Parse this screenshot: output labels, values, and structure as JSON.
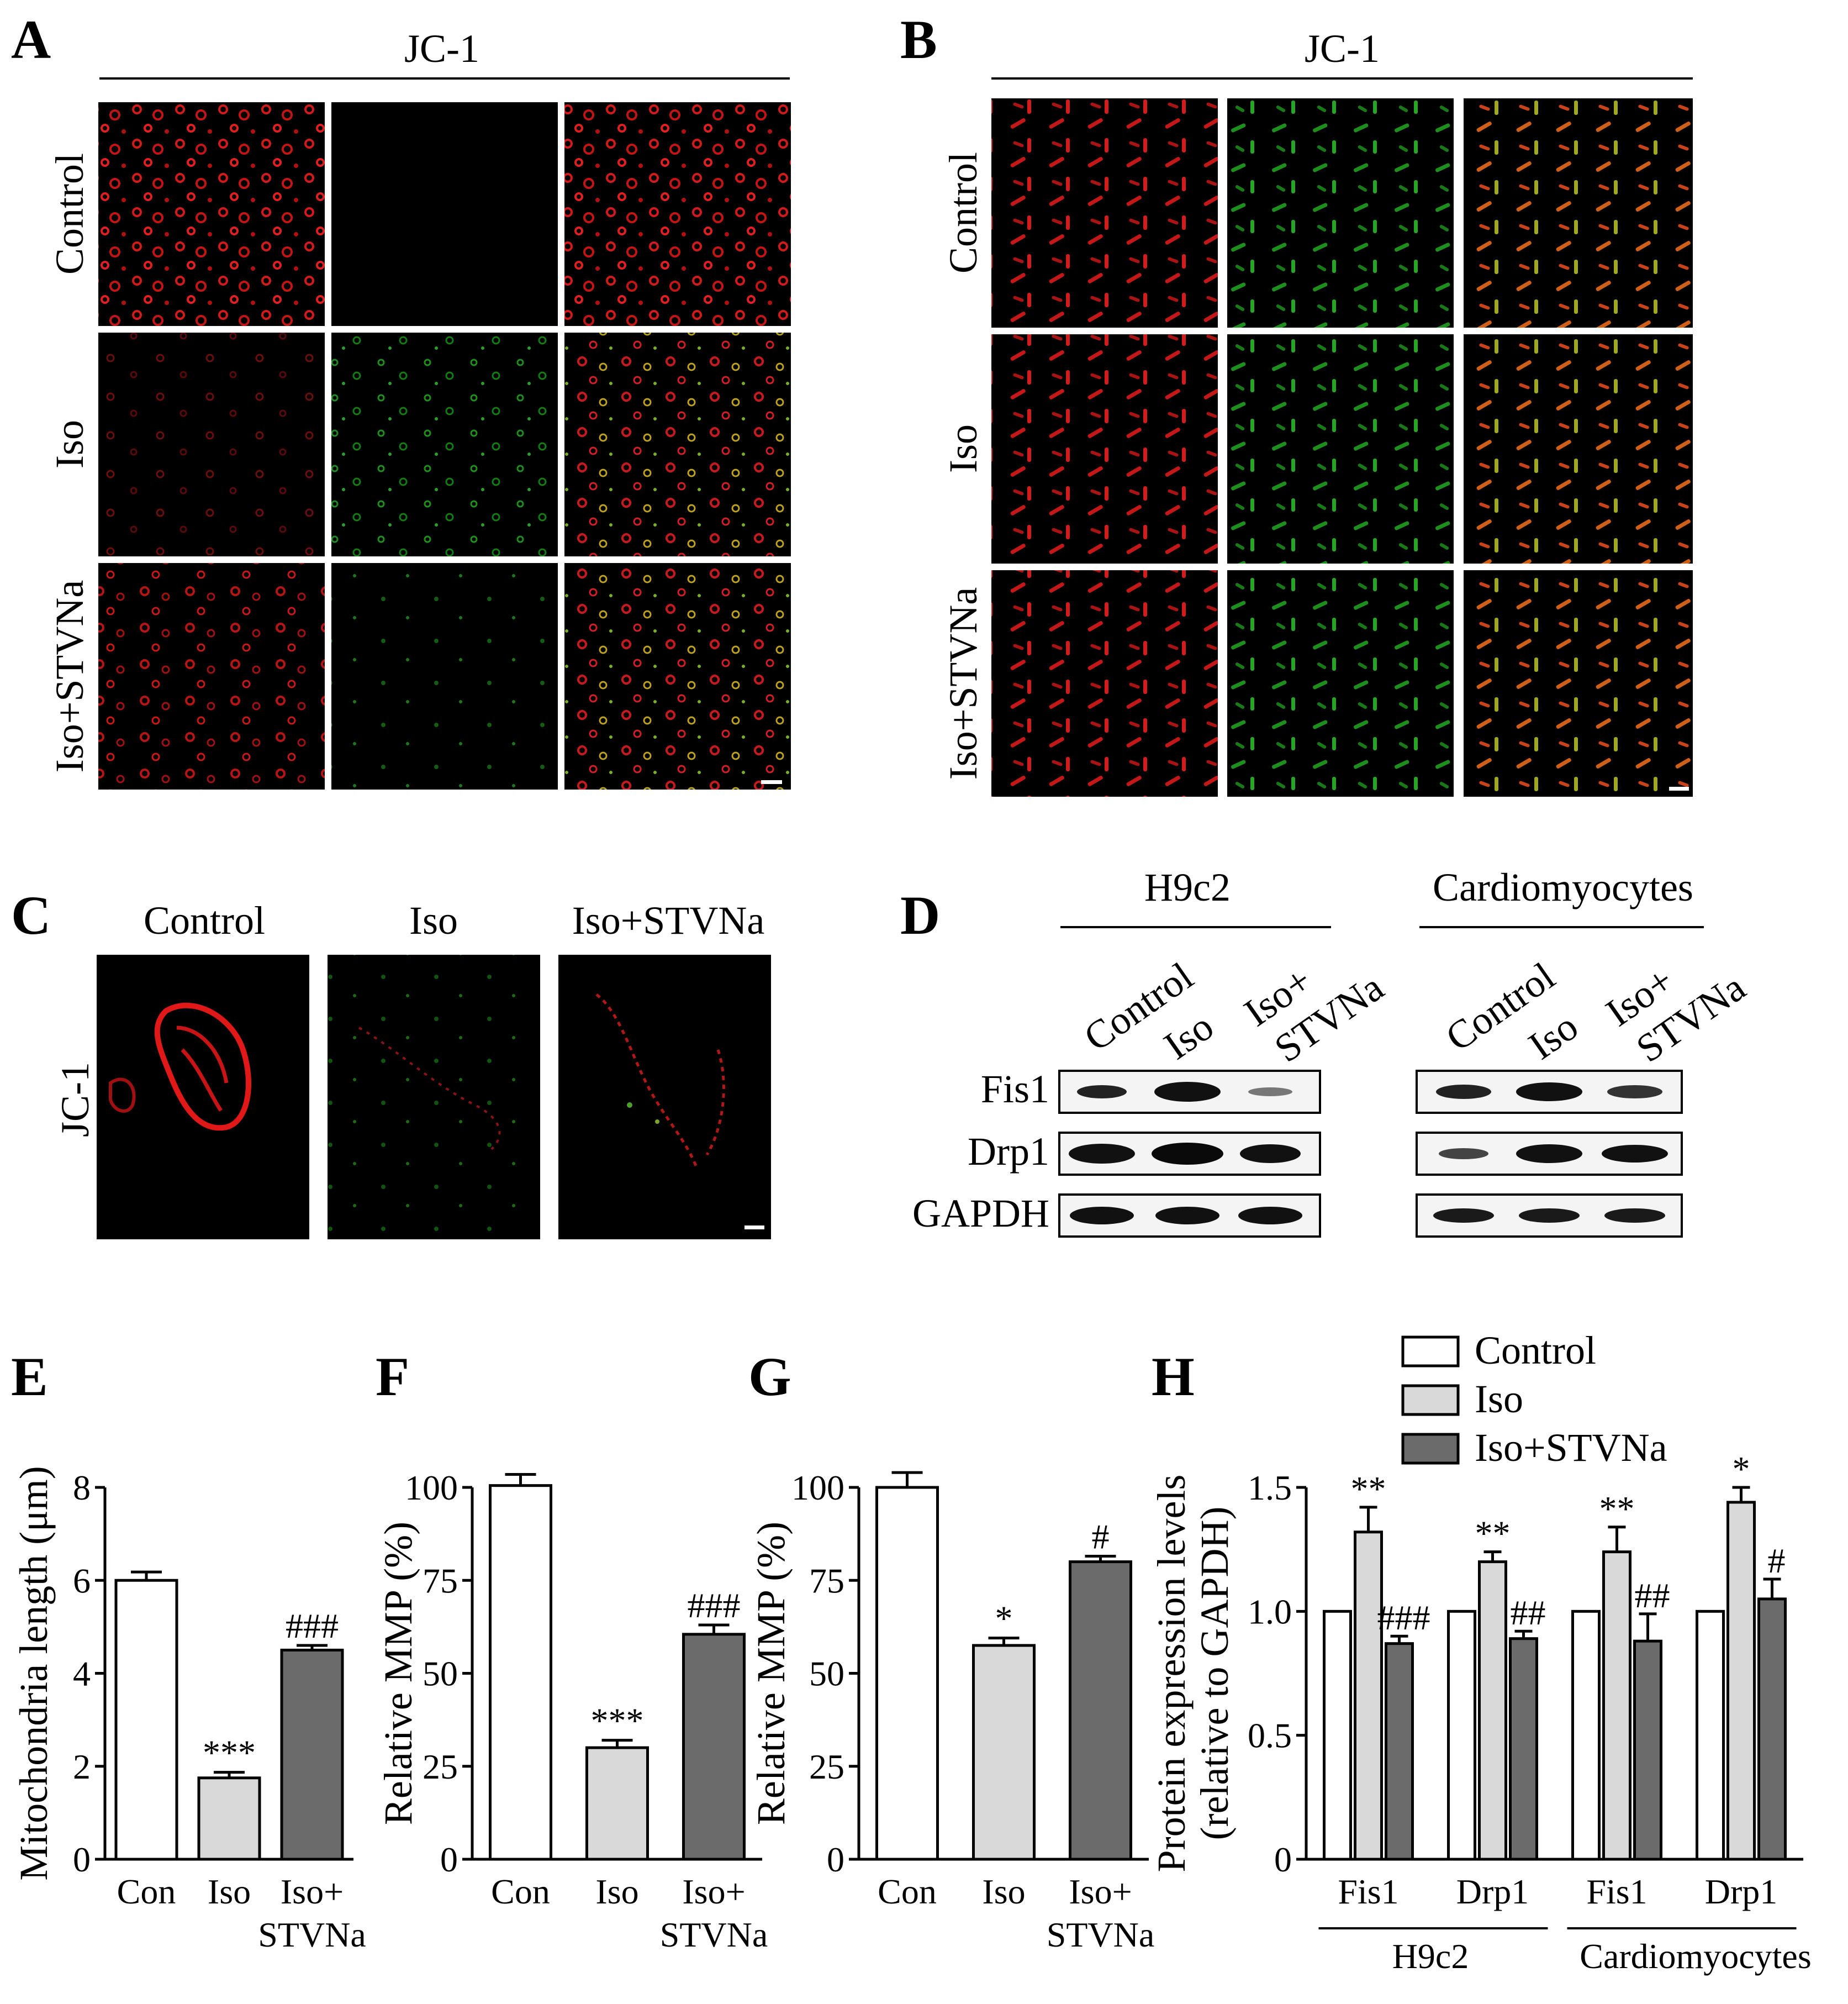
{
  "panels": {
    "A": {
      "letter": "A",
      "header": "JC-1",
      "rows": [
        "Control",
        "Iso",
        "Iso+STVNa"
      ]
    },
    "B": {
      "letter": "B",
      "header": "JC-1",
      "rows": [
        "Control",
        "Iso",
        "Iso+STVNa"
      ]
    },
    "C": {
      "letter": "C",
      "columns": [
        "Control",
        "Iso",
        "Iso+STVNa"
      ],
      "row_label": "JC-1"
    },
    "D": {
      "letter": "D",
      "groups": [
        "H9c2",
        "Cardiomyocytes"
      ],
      "lanes_h9c2": [
        "Control",
        "Iso",
        "Iso+",
        "STVNa"
      ],
      "lanes_cm": [
        "Control",
        "Iso",
        "Iso+",
        "STVNa"
      ],
      "blots": [
        "Fis1",
        "Drp1",
        "GAPDH"
      ]
    },
    "E": {
      "letter": "E"
    },
    "F": {
      "letter": "F"
    },
    "G": {
      "letter": "G"
    },
    "H": {
      "letter": "H"
    }
  },
  "chart_data": [
    {
      "id": "E",
      "type": "bar",
      "categories": [
        "Con",
        "Iso",
        "Iso+\nSTVNa"
      ],
      "category_lines": [
        [
          "Con"
        ],
        [
          "Iso"
        ],
        [
          "Iso+",
          "STVNa"
        ]
      ],
      "values": [
        6.0,
        1.75,
        4.5
      ],
      "errors": [
        0.18,
        0.12,
        0.1
      ],
      "significance": [
        "",
        "***",
        "###"
      ],
      "ylabel": "Mitochondria length (μm)",
      "ylim": [
        0,
        8
      ],
      "yticks": [
        "0",
        "2",
        "4",
        "6",
        "8"
      ],
      "bar_colors": [
        "#ffffff",
        "#d9d9d9",
        "#6b6b6b"
      ]
    },
    {
      "id": "F",
      "type": "bar",
      "categories": [
        "Con",
        "Iso",
        "Iso+\nSTVNa"
      ],
      "category_lines": [
        [
          "Con"
        ],
        [
          "Iso"
        ],
        [
          "Iso+",
          "STVNa"
        ]
      ],
      "values": [
        100.5,
        30.0,
        60.5
      ],
      "errors": [
        3.0,
        2.0,
        2.5
      ],
      "significance": [
        "",
        "***",
        "###"
      ],
      "ylabel": "Relative MMP (%)",
      "ylim": [
        0,
        100
      ],
      "yticks": [
        "0",
        "25",
        "50",
        "75",
        "100"
      ],
      "bar_colors": [
        "#ffffff",
        "#d9d9d9",
        "#6b6b6b"
      ]
    },
    {
      "id": "G",
      "type": "bar",
      "categories": [
        "Con",
        "Iso",
        "Iso+\nSTVNa"
      ],
      "category_lines": [
        [
          "Con"
        ],
        [
          "Iso"
        ],
        [
          "Iso+",
          "STVNa"
        ]
      ],
      "values": [
        100.0,
        57.5,
        80.0
      ],
      "errors": [
        4.0,
        2.0,
        1.5
      ],
      "significance": [
        "",
        "*",
        "#"
      ],
      "ylabel": "Relative MMP (%)",
      "ylim": [
        0,
        100
      ],
      "yticks": [
        "0",
        "25",
        "50",
        "75",
        "100"
      ],
      "bar_colors": [
        "#ffffff",
        "#d9d9d9",
        "#6b6b6b"
      ]
    },
    {
      "id": "H",
      "type": "bar",
      "categories": [
        "Fis1",
        "Drp1",
        "Fis1",
        "Drp1"
      ],
      "groups": [
        "H9c2",
        "Cardiomyocytes"
      ],
      "ylabel": "Protein expression levels",
      "ylabel2": "(relative to GAPDH)",
      "ylim": [
        0,
        1.5
      ],
      "yticks": [
        "0",
        "0.5",
        "1.0",
        "1.5"
      ],
      "series": [
        {
          "name": "Control",
          "values": [
            1.0,
            1.0,
            1.0,
            1.0
          ],
          "errors": [
            0,
            0,
            0,
            0
          ],
          "significance": [
            "",
            "",
            "",
            ""
          ],
          "color": "#ffffff"
        },
        {
          "name": "Iso",
          "values": [
            1.32,
            1.2,
            1.24,
            1.44
          ],
          "errors": [
            0.1,
            0.04,
            0.1,
            0.06
          ],
          "significance": [
            "**",
            "**",
            "**",
            "*"
          ],
          "color": "#d9d9d9"
        },
        {
          "name": "Iso+STVNa",
          "values": [
            0.87,
            0.89,
            0.88,
            1.05
          ],
          "errors": [
            0.03,
            0.03,
            0.11,
            0.08
          ],
          "significance": [
            "###",
            "##",
            "##",
            "#"
          ],
          "color": "#6b6b6b"
        }
      ]
    }
  ]
}
